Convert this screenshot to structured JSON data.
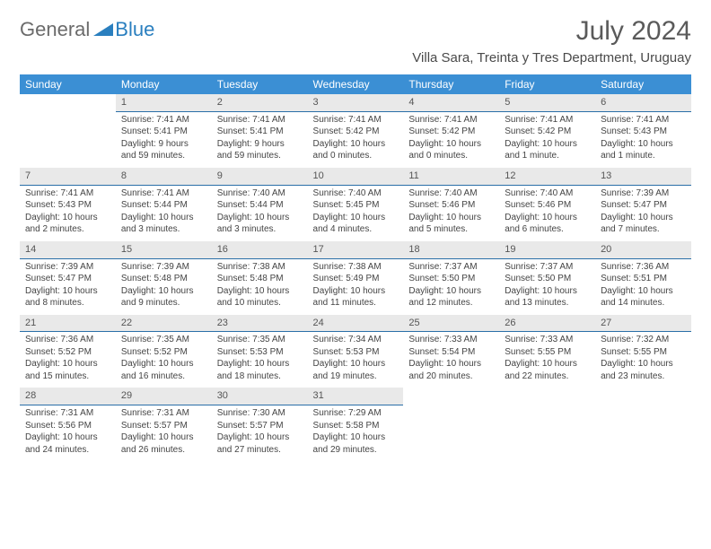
{
  "brand": {
    "part1": "General",
    "part2": "Blue"
  },
  "title": "July 2024",
  "location": "Villa Sara, Treinta y Tres Department, Uruguay",
  "colors": {
    "header_bg": "#3b8fd4",
    "header_text": "#ffffff",
    "daynum_bg": "#e9e9e9",
    "daynum_border": "#2a6fa8",
    "text": "#444444",
    "title_text": "#5a5a5a",
    "brand_gray": "#6b6b6b",
    "brand_blue": "#2a7fbf"
  },
  "typography": {
    "title_fontsize": 30,
    "location_fontsize": 15,
    "day_header_fontsize": 12,
    "daynum_fontsize": 11,
    "cell_fontsize": 10
  },
  "layout": {
    "columns": 7,
    "rows": 5,
    "leading_blanks": 1
  },
  "day_headers": [
    "Sunday",
    "Monday",
    "Tuesday",
    "Wednesday",
    "Thursday",
    "Friday",
    "Saturday"
  ],
  "days": [
    {
      "n": "1",
      "sunrise": "Sunrise: 7:41 AM",
      "sunset": "Sunset: 5:41 PM",
      "daylight1": "Daylight: 9 hours",
      "daylight2": "and 59 minutes."
    },
    {
      "n": "2",
      "sunrise": "Sunrise: 7:41 AM",
      "sunset": "Sunset: 5:41 PM",
      "daylight1": "Daylight: 9 hours",
      "daylight2": "and 59 minutes."
    },
    {
      "n": "3",
      "sunrise": "Sunrise: 7:41 AM",
      "sunset": "Sunset: 5:42 PM",
      "daylight1": "Daylight: 10 hours",
      "daylight2": "and 0 minutes."
    },
    {
      "n": "4",
      "sunrise": "Sunrise: 7:41 AM",
      "sunset": "Sunset: 5:42 PM",
      "daylight1": "Daylight: 10 hours",
      "daylight2": "and 0 minutes."
    },
    {
      "n": "5",
      "sunrise": "Sunrise: 7:41 AM",
      "sunset": "Sunset: 5:42 PM",
      "daylight1": "Daylight: 10 hours",
      "daylight2": "and 1 minute."
    },
    {
      "n": "6",
      "sunrise": "Sunrise: 7:41 AM",
      "sunset": "Sunset: 5:43 PM",
      "daylight1": "Daylight: 10 hours",
      "daylight2": "and 1 minute."
    },
    {
      "n": "7",
      "sunrise": "Sunrise: 7:41 AM",
      "sunset": "Sunset: 5:43 PM",
      "daylight1": "Daylight: 10 hours",
      "daylight2": "and 2 minutes."
    },
    {
      "n": "8",
      "sunrise": "Sunrise: 7:41 AM",
      "sunset": "Sunset: 5:44 PM",
      "daylight1": "Daylight: 10 hours",
      "daylight2": "and 3 minutes."
    },
    {
      "n": "9",
      "sunrise": "Sunrise: 7:40 AM",
      "sunset": "Sunset: 5:44 PM",
      "daylight1": "Daylight: 10 hours",
      "daylight2": "and 3 minutes."
    },
    {
      "n": "10",
      "sunrise": "Sunrise: 7:40 AM",
      "sunset": "Sunset: 5:45 PM",
      "daylight1": "Daylight: 10 hours",
      "daylight2": "and 4 minutes."
    },
    {
      "n": "11",
      "sunrise": "Sunrise: 7:40 AM",
      "sunset": "Sunset: 5:46 PM",
      "daylight1": "Daylight: 10 hours",
      "daylight2": "and 5 minutes."
    },
    {
      "n": "12",
      "sunrise": "Sunrise: 7:40 AM",
      "sunset": "Sunset: 5:46 PM",
      "daylight1": "Daylight: 10 hours",
      "daylight2": "and 6 minutes."
    },
    {
      "n": "13",
      "sunrise": "Sunrise: 7:39 AM",
      "sunset": "Sunset: 5:47 PM",
      "daylight1": "Daylight: 10 hours",
      "daylight2": "and 7 minutes."
    },
    {
      "n": "14",
      "sunrise": "Sunrise: 7:39 AM",
      "sunset": "Sunset: 5:47 PM",
      "daylight1": "Daylight: 10 hours",
      "daylight2": "and 8 minutes."
    },
    {
      "n": "15",
      "sunrise": "Sunrise: 7:39 AM",
      "sunset": "Sunset: 5:48 PM",
      "daylight1": "Daylight: 10 hours",
      "daylight2": "and 9 minutes."
    },
    {
      "n": "16",
      "sunrise": "Sunrise: 7:38 AM",
      "sunset": "Sunset: 5:48 PM",
      "daylight1": "Daylight: 10 hours",
      "daylight2": "and 10 minutes."
    },
    {
      "n": "17",
      "sunrise": "Sunrise: 7:38 AM",
      "sunset": "Sunset: 5:49 PM",
      "daylight1": "Daylight: 10 hours",
      "daylight2": "and 11 minutes."
    },
    {
      "n": "18",
      "sunrise": "Sunrise: 7:37 AM",
      "sunset": "Sunset: 5:50 PM",
      "daylight1": "Daylight: 10 hours",
      "daylight2": "and 12 minutes."
    },
    {
      "n": "19",
      "sunrise": "Sunrise: 7:37 AM",
      "sunset": "Sunset: 5:50 PM",
      "daylight1": "Daylight: 10 hours",
      "daylight2": "and 13 minutes."
    },
    {
      "n": "20",
      "sunrise": "Sunrise: 7:36 AM",
      "sunset": "Sunset: 5:51 PM",
      "daylight1": "Daylight: 10 hours",
      "daylight2": "and 14 minutes."
    },
    {
      "n": "21",
      "sunrise": "Sunrise: 7:36 AM",
      "sunset": "Sunset: 5:52 PM",
      "daylight1": "Daylight: 10 hours",
      "daylight2": "and 15 minutes."
    },
    {
      "n": "22",
      "sunrise": "Sunrise: 7:35 AM",
      "sunset": "Sunset: 5:52 PM",
      "daylight1": "Daylight: 10 hours",
      "daylight2": "and 16 minutes."
    },
    {
      "n": "23",
      "sunrise": "Sunrise: 7:35 AM",
      "sunset": "Sunset: 5:53 PM",
      "daylight1": "Daylight: 10 hours",
      "daylight2": "and 18 minutes."
    },
    {
      "n": "24",
      "sunrise": "Sunrise: 7:34 AM",
      "sunset": "Sunset: 5:53 PM",
      "daylight1": "Daylight: 10 hours",
      "daylight2": "and 19 minutes."
    },
    {
      "n": "25",
      "sunrise": "Sunrise: 7:33 AM",
      "sunset": "Sunset: 5:54 PM",
      "daylight1": "Daylight: 10 hours",
      "daylight2": "and 20 minutes."
    },
    {
      "n": "26",
      "sunrise": "Sunrise: 7:33 AM",
      "sunset": "Sunset: 5:55 PM",
      "daylight1": "Daylight: 10 hours",
      "daylight2": "and 22 minutes."
    },
    {
      "n": "27",
      "sunrise": "Sunrise: 7:32 AM",
      "sunset": "Sunset: 5:55 PM",
      "daylight1": "Daylight: 10 hours",
      "daylight2": "and 23 minutes."
    },
    {
      "n": "28",
      "sunrise": "Sunrise: 7:31 AM",
      "sunset": "Sunset: 5:56 PM",
      "daylight1": "Daylight: 10 hours",
      "daylight2": "and 24 minutes."
    },
    {
      "n": "29",
      "sunrise": "Sunrise: 7:31 AM",
      "sunset": "Sunset: 5:57 PM",
      "daylight1": "Daylight: 10 hours",
      "daylight2": "and 26 minutes."
    },
    {
      "n": "30",
      "sunrise": "Sunrise: 7:30 AM",
      "sunset": "Sunset: 5:57 PM",
      "daylight1": "Daylight: 10 hours",
      "daylight2": "and 27 minutes."
    },
    {
      "n": "31",
      "sunrise": "Sunrise: 7:29 AM",
      "sunset": "Sunset: 5:58 PM",
      "daylight1": "Daylight: 10 hours",
      "daylight2": "and 29 minutes."
    }
  ]
}
